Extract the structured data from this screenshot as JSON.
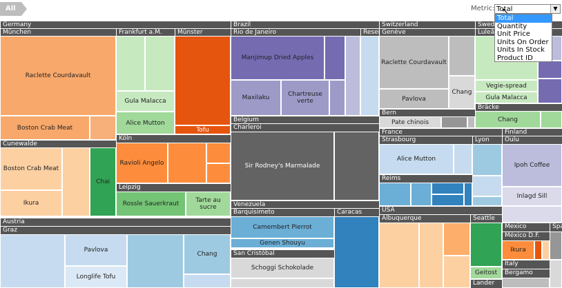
{
  "breadcrumb": "All",
  "metric": {
    "label": "Metric:",
    "selected": "Total",
    "options": [
      "Total",
      "Quantity",
      "Unit Price",
      "Units On Order",
      "Units In Stock",
      "Product ID"
    ]
  },
  "headers": {
    "germany": "Germany",
    "munchen": "München",
    "frankfurt": "Frankfurt a.M.",
    "munster": "Münster",
    "cunewalde": "Cunewalde",
    "koln": "Köln",
    "leipzig": "Leipzig",
    "austria": "Austria",
    "graz": "Graz",
    "brazil": "Brazil",
    "rio": "Rio de Janeiro",
    "resende": "Resen",
    "belgium": "Belgium",
    "charleroi": "Charleroi",
    "venezuela": "Venezuela",
    "barquisimeto": "Barquisimeto",
    "caracas": "Caracas",
    "san_cristobal": "San Cristóbal",
    "switzerland": "Switzerland",
    "geneve": "Genève",
    "bern": "Bern",
    "france": "France",
    "strasbourg": "Strasbourg",
    "lyon": "Lyon",
    "reims": "Reims",
    "usa": "USA",
    "albuquerque": "Albuquerque",
    "seattle": "Seattle",
    "sweden": "Swed",
    "lulea": "Luleå",
    "bracke": "Bräcke",
    "finland": "Finland",
    "oulu": "Oulu",
    "mexico": "Mexico",
    "mexico_df": "México D.F.",
    "spain": "Spa",
    "italy": "Italy",
    "bergamo": "Bergamo",
    "lander": "Lander"
  },
  "products": {
    "raclette1": "Raclette Courdavault",
    "bostoncrab1": "Boston Crab Meat",
    "gula1": "Gula Malacca",
    "alice1": "Alice Mutton",
    "tofu": "Tofu",
    "bostoncrab2": "Boston Crab Meat",
    "ikura1": "Ikura",
    "chai": "Chai",
    "ravioli": "Ravioli Angelo",
    "rossle": "Rossle Sauerkraut",
    "tarte": "Tarte au sucre",
    "pavlova1": "Pavlova",
    "longlife": "Longlife Tofu",
    "chang1": "Chang",
    "manjimup": "Manjimup Dried Apples",
    "maxilaku": "Maxilaku",
    "chartreuse": "Chartreuse verte",
    "sirrodney": "Sir Rodney's Marmalade",
    "camembert": "Camembert Pierrot",
    "genen": "Genen Shouyu",
    "schoggi": "Schoggi Schokolade",
    "raclette2": "Raclette Courdavault",
    "pavlova2": "Pavlova",
    "chang2": "Chang",
    "pate": "Pate chinois",
    "alice2": "Alice Mutton",
    "geitost": "Geitost",
    "vegie": "Vegie-spread",
    "gula2": "Gula Malacca",
    "chang3": "Chang",
    "ipoh": "Ipoh Coffee",
    "inlagd": "Inlagd Sill",
    "ikura2": "Ikura"
  }
}
